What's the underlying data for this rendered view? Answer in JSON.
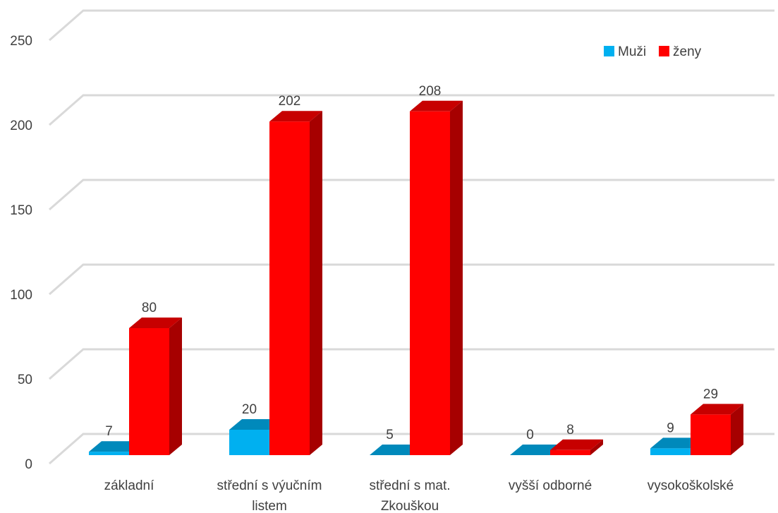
{
  "chart_data": {
    "type": "bar",
    "categories": [
      [
        "základní"
      ],
      [
        "střední s výučním",
        "listem"
      ],
      [
        "střední s mat.",
        "Zkouškou"
      ],
      [
        "vyšší odborné"
      ],
      [
        "vysokoškolské"
      ]
    ],
    "series": [
      {
        "name": "Muži",
        "values": [
          7,
          20,
          5,
          0,
          9
        ],
        "color": "#00B0F0"
      },
      {
        "name": "ženy",
        "values": [
          80,
          202,
          208,
          8,
          29
        ],
        "color": "#FF0000"
      }
    ],
    "ylim": [
      0,
      250
    ],
    "yticks": [
      0,
      50,
      100,
      150,
      200,
      250
    ],
    "grid": true,
    "legend": "top-right",
    "data_labels": true
  }
}
